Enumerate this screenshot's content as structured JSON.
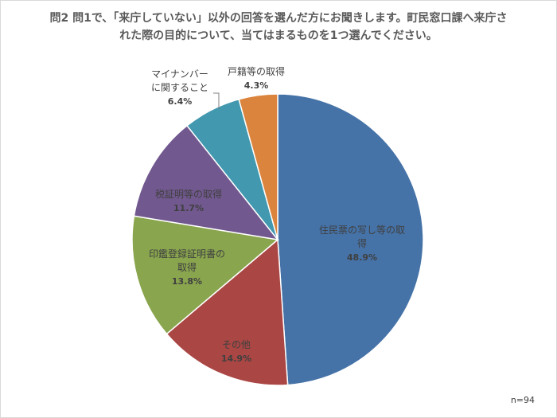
{
  "chart_data": {
    "type": "pie",
    "title": "問2 問1で、「来庁していない」以外の回答を選んだ方にお聞きします。町民窓口課へ来庁された際の目的について、当てはまるものを1つ選んでください。",
    "note": "n=94",
    "slices": [
      {
        "label": "住民票の写し等の取得",
        "value": 48.9,
        "display": "48.9%",
        "color": "#4572a7",
        "label_color": "#404040"
      },
      {
        "label": "その他",
        "value": 14.9,
        "display": "14.9%",
        "color": "#aa4643",
        "label_color": "#404040"
      },
      {
        "label": "印鑑登録証明書の取得",
        "value": 13.8,
        "display": "13.8%",
        "color": "#89a54e",
        "label_color": "#404040"
      },
      {
        "label": "税証明等の取得",
        "value": 11.7,
        "display": "11.7%",
        "color": "#71588f",
        "label_color": "#404040"
      },
      {
        "label": "マイナンバーに関すること",
        "value": 6.4,
        "display": "6.4%",
        "color": "#4198af",
        "label_color": "#404040"
      },
      {
        "label": "戸籍等の取得",
        "value": 4.3,
        "display": "4.3%",
        "color": "#db843d",
        "label_color": "#404040"
      }
    ]
  }
}
